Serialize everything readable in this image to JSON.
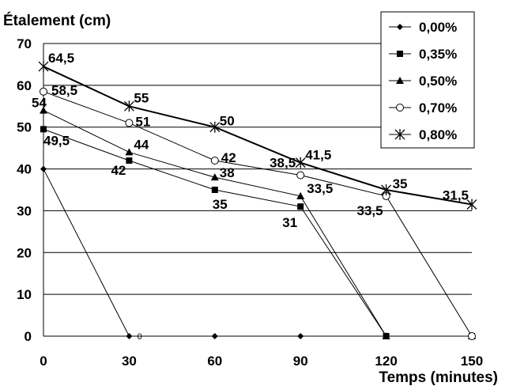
{
  "chart_data": {
    "type": "line",
    "title": "",
    "ylabel": "Étalement (cm)",
    "xlabel": "Temps (minutes)",
    "xlim": [
      0,
      150
    ],
    "ylim": [
      0,
      70
    ],
    "x_ticks": [
      0,
      30,
      60,
      90,
      120,
      150
    ],
    "y_ticks": [
      0,
      10,
      20,
      30,
      40,
      50,
      60,
      70
    ],
    "grid": "horizontal",
    "legend_position": "top-right",
    "stray_label": {
      "x": 32,
      "y": 0,
      "text": "0"
    },
    "series": [
      {
        "name": "0,00%",
        "marker": "diamond",
        "points": [
          [
            0,
            40
          ],
          [
            30,
            0
          ],
          [
            60,
            0
          ],
          [
            90,
            0
          ],
          [
            120,
            0
          ],
          [
            150,
            0
          ]
        ],
        "labels": []
      },
      {
        "name": "0,35%",
        "marker": "square",
        "points": [
          [
            0,
            49.5
          ],
          [
            30,
            42
          ],
          [
            60,
            35
          ],
          [
            90,
            31
          ],
          [
            120,
            0
          ],
          [
            150,
            0
          ]
        ],
        "labels": [
          "49,5",
          "42",
          "35",
          "31",
          "",
          ""
        ]
      },
      {
        "name": "0,50%",
        "marker": "triangle",
        "points": [
          [
            0,
            54
          ],
          [
            30,
            44
          ],
          [
            60,
            38
          ],
          [
            90,
            33.5
          ],
          [
            120,
            0
          ],
          [
            150,
            0
          ]
        ],
        "labels": [
          "54",
          "44",
          "38",
          "33,5",
          "",
          ""
        ]
      },
      {
        "name": "0,70%",
        "marker": "circle",
        "points": [
          [
            0,
            58.5
          ],
          [
            30,
            51
          ],
          [
            60,
            42
          ],
          [
            90,
            38.5
          ],
          [
            120,
            33.5
          ],
          [
            150,
            0
          ]
        ],
        "labels": [
          "58,5",
          "51",
          "42",
          "38,5",
          "33,5",
          ""
        ]
      },
      {
        "name": "0,80%",
        "marker": "star",
        "points": [
          [
            0,
            64.5
          ],
          [
            30,
            55
          ],
          [
            60,
            50
          ],
          [
            90,
            41.5
          ],
          [
            120,
            35
          ],
          [
            150,
            31.5
          ]
        ],
        "labels": [
          "64,5",
          "55",
          "50",
          "41,5",
          "35",
          "31,5"
        ]
      }
    ]
  }
}
